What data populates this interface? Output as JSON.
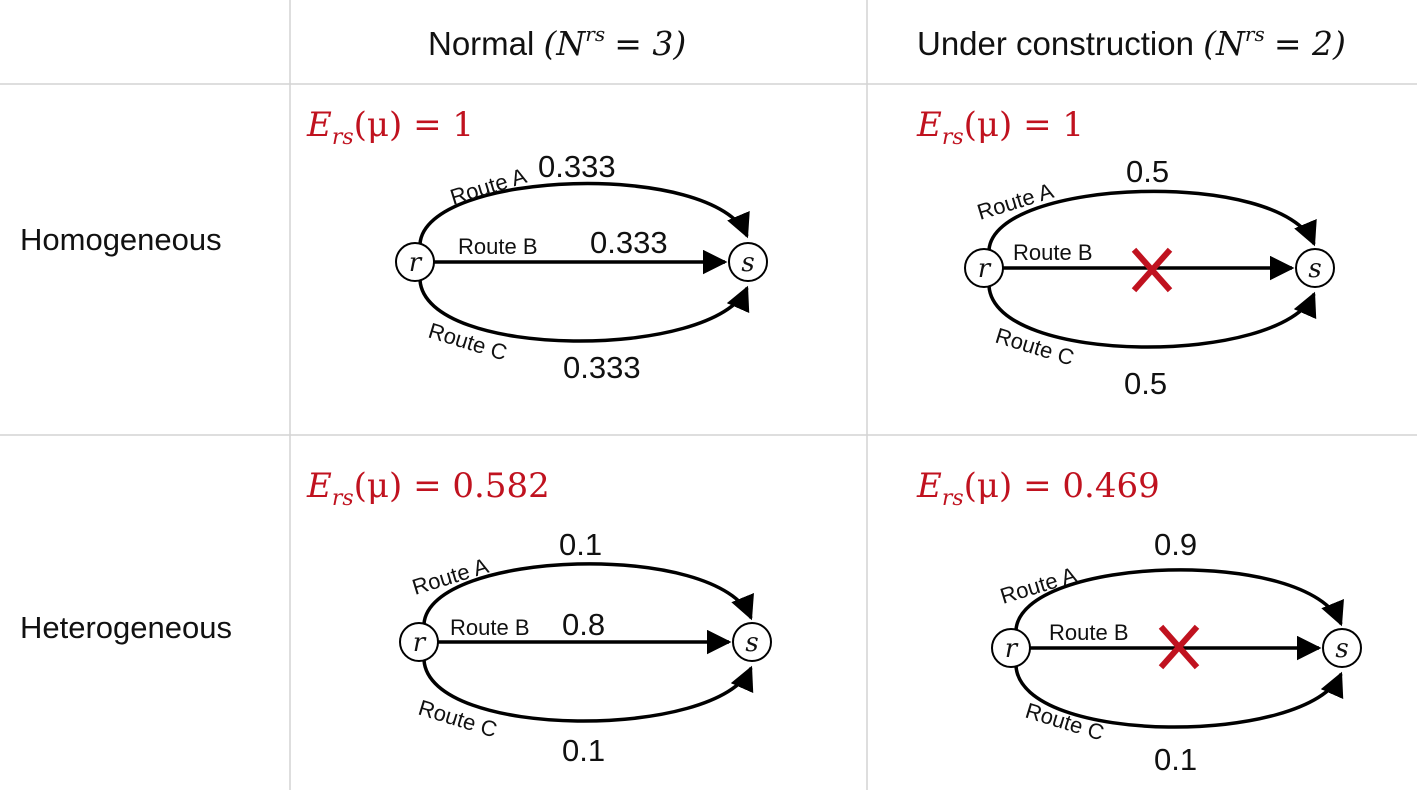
{
  "columns": {
    "normal": {
      "label": "Normal",
      "n_text": "(N",
      "n_sup": "rs",
      "n_val": "= 3)"
    },
    "construction": {
      "label": "Under construction",
      "n_text": "(N",
      "n_sup": "rs",
      "n_val": "= 2)"
    }
  },
  "rows": {
    "homogeneous": "Homogeneous",
    "heterogeneous": "Heterogeneous"
  },
  "panels": {
    "homo_normal": {
      "eq": {
        "E": "E",
        "sub": "rs",
        "arg": "(μ)",
        "val": "= 1"
      },
      "route_a": "Route A",
      "route_b": "Route B",
      "route_c": "Route C",
      "val_a": "0.333",
      "val_b": "0.333",
      "val_c": "0.333",
      "node_r": "r",
      "node_s": "s"
    },
    "homo_construction": {
      "eq": {
        "E": "E",
        "sub": "rs",
        "arg": "(μ)",
        "val": "= 1"
      },
      "route_a": "Route A",
      "route_b": "Route B",
      "route_c": "Route C",
      "val_a": "0.5",
      "val_c": "0.5",
      "node_r": "r",
      "node_s": "s"
    },
    "hetero_normal": {
      "eq": {
        "E": "E",
        "sub": "rs",
        "arg": "(μ)",
        "val": "= 0.582"
      },
      "route_a": "Route A",
      "route_b": "Route B",
      "route_c": "Route C",
      "val_a": "0.1",
      "val_b": "0.8",
      "val_c": "0.1",
      "node_r": "r",
      "node_s": "s"
    },
    "hetero_construction": {
      "eq": {
        "E": "E",
        "sub": "rs",
        "arg": "(μ)",
        "val": "= 0.469"
      },
      "route_a": "Route A",
      "route_b": "Route B",
      "route_c": "Route C",
      "val_a": "0.9",
      "val_c": "0.1",
      "node_r": "r",
      "node_s": "s"
    }
  },
  "colors": {
    "equation": "#c0121f",
    "blocked_cross": "#c0121f",
    "grid_line": "#d4d4d4",
    "edge": "#000000"
  },
  "blocked_marker": "cross"
}
